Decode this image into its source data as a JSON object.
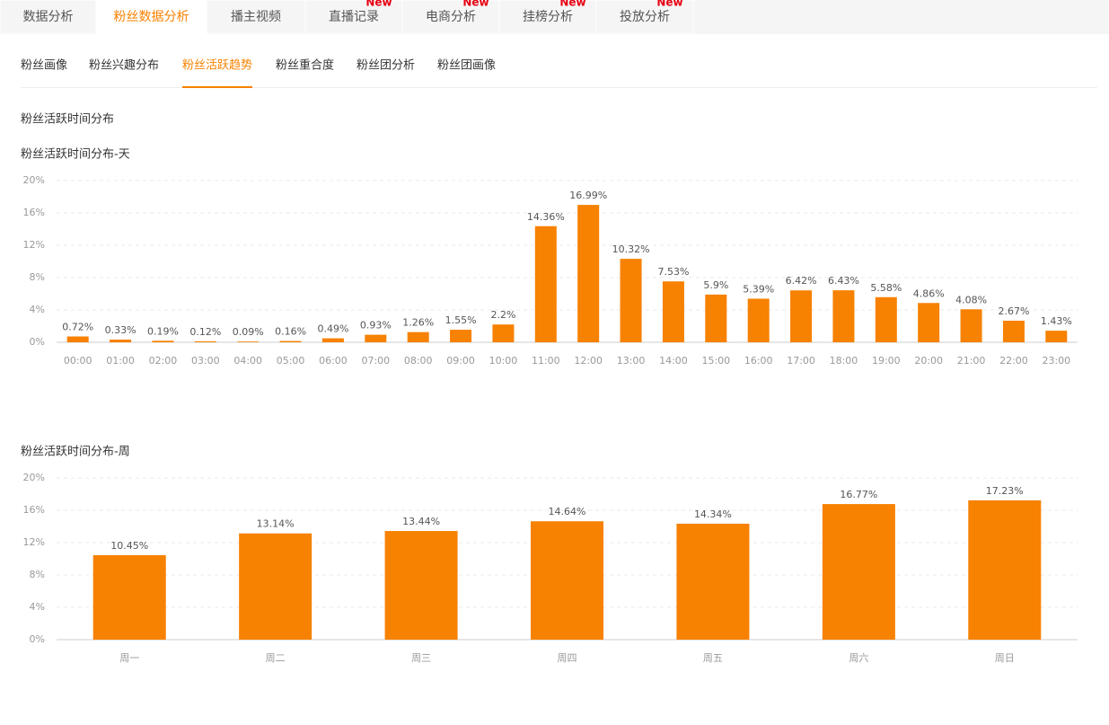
{
  "tabs": [
    {
      "label": "数据分析"
    },
    {
      "label": "粉丝数据分析",
      "active": true
    },
    {
      "label": "播主视频"
    },
    {
      "label": "直播记录",
      "badge": "New"
    },
    {
      "label": "电商分析",
      "badge": "New"
    },
    {
      "label": "挂榜分析",
      "badge": "New"
    },
    {
      "label": "投放分析",
      "badge": "New"
    }
  ],
  "subtabs": [
    {
      "label": "粉丝画像"
    },
    {
      "label": "粉丝兴趣分布"
    },
    {
      "label": "粉丝活跃趋势",
      "active": true
    },
    {
      "label": "粉丝重合度"
    },
    {
      "label": "粉丝团分析"
    },
    {
      "label": "粉丝团画像"
    }
  ],
  "section_title": "粉丝活跃时间分布",
  "chart_data": [
    {
      "type": "bar",
      "title": "粉丝活跃时间分布-天",
      "color": "#f78100",
      "grid": true,
      "categories": [
        "00:00",
        "01:00",
        "02:00",
        "03:00",
        "04:00",
        "05:00",
        "06:00",
        "07:00",
        "08:00",
        "09:00",
        "10:00",
        "11:00",
        "12:00",
        "13:00",
        "14:00",
        "15:00",
        "16:00",
        "17:00",
        "18:00",
        "19:00",
        "20:00",
        "21:00",
        "22:00",
        "23:00"
      ],
      "values": [
        0.72,
        0.33,
        0.19,
        0.12,
        0.09,
        0.16,
        0.49,
        0.93,
        1.26,
        1.55,
        2.2,
        14.36,
        16.99,
        10.32,
        7.53,
        5.9,
        5.39,
        6.42,
        6.43,
        5.58,
        4.86,
        4.08,
        2.67,
        1.43
      ],
      "value_labels": [
        "0.72%",
        "0.33%",
        "0.19%",
        "0.12%",
        "0.09%",
        "0.16%",
        "0.49%",
        "0.93%",
        "1.26%",
        "1.55%",
        "2.2%",
        "14.36%",
        "16.99%",
        "10.32%",
        "7.53%",
        "5.9%",
        "5.39%",
        "6.42%",
        "6.43%",
        "5.58%",
        "4.86%",
        "4.08%",
        "2.67%",
        "1.43%"
      ],
      "ylim": [
        0,
        20
      ],
      "yticks": [
        {
          "value": 0,
          "label": "0%"
        },
        {
          "value": 4,
          "label": "4%"
        },
        {
          "value": 8,
          "label": "8%"
        },
        {
          "value": 12,
          "label": "12%"
        },
        {
          "value": 16,
          "label": "16%"
        },
        {
          "value": 20,
          "label": "20%"
        }
      ]
    },
    {
      "type": "bar",
      "title": "粉丝活跃时间分布-周",
      "color": "#f78100",
      "grid": true,
      "categories": [
        "周一",
        "周二",
        "周三",
        "周四",
        "周五",
        "周六",
        "周日"
      ],
      "values": [
        10.45,
        13.14,
        13.44,
        14.64,
        14.34,
        16.77,
        17.23
      ],
      "value_labels": [
        "10.45%",
        "13.14%",
        "13.44%",
        "14.64%",
        "14.34%",
        "16.77%",
        "17.23%"
      ],
      "ylim": [
        0,
        20
      ],
      "yticks": [
        {
          "value": 0,
          "label": "0%"
        },
        {
          "value": 4,
          "label": "4%"
        },
        {
          "value": 8,
          "label": "8%"
        },
        {
          "value": 12,
          "label": "12%"
        },
        {
          "value": 16,
          "label": "16%"
        },
        {
          "value": 20,
          "label": "20%"
        }
      ]
    }
  ]
}
